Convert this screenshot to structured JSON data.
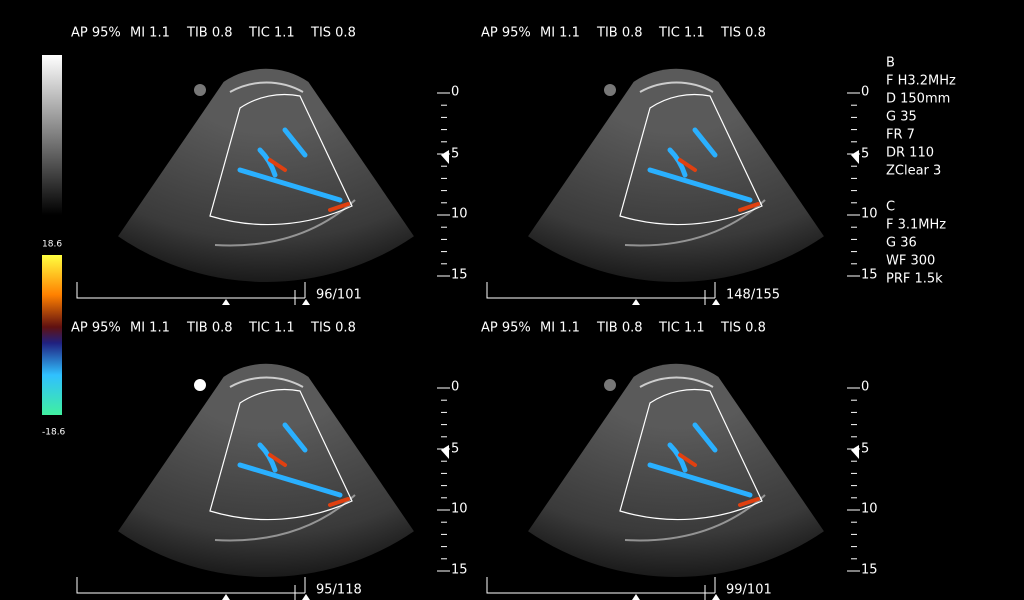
{
  "panels": [
    {
      "header": [
        "AP 95%",
        "MI 1.1",
        "TIB 0.8",
        "TIC 1.1",
        "TIS 0.8"
      ],
      "depth_scale": [
        "0",
        "5",
        "10",
        "15"
      ],
      "frame": "96/101"
    },
    {
      "header": [
        "AP 95%",
        "MI 1.1",
        "TIB 0.8",
        "TIC 1.1",
        "TIS 0.8"
      ],
      "depth_scale": [
        "0",
        "5",
        "10",
        "15"
      ],
      "frame": "148/155"
    },
    {
      "header": [
        "AP 95%",
        "MI 1.1",
        "TIB 0.8",
        "TIC 1.1",
        "TIS 0.8"
      ],
      "depth_scale": [
        "0",
        "5",
        "10",
        "15"
      ],
      "frame": "95/118"
    },
    {
      "header": [
        "AP 95%",
        "MI 1.1",
        "TIB 0.8",
        "TIC 1.1",
        "TIS 0.8"
      ],
      "depth_scale": [
        "0",
        "5",
        "10",
        "15"
      ],
      "frame": "99/101"
    }
  ],
  "color_map": {
    "max": "18.6",
    "min": "-18.6"
  },
  "parameters": {
    "b_mode": [
      "B",
      "F H3.2MHz",
      "D 150mm",
      "G 35",
      "FR 7",
      "DR 110",
      "ZClear 3"
    ],
    "color_mode": [
      "C",
      "F 3.1MHz",
      "G 36",
      "WF 300",
      "PRF 1.5k"
    ]
  }
}
